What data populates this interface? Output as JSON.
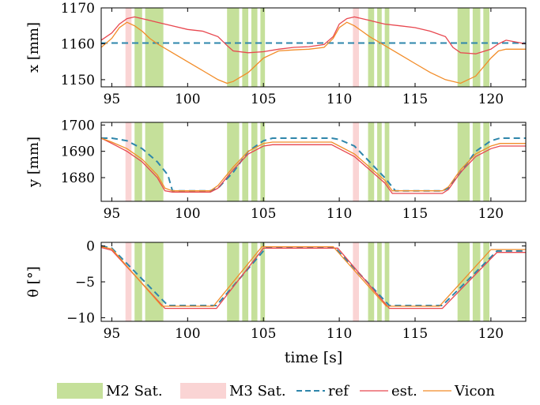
{
  "chart_data": [
    {
      "type": "line",
      "panel": "x",
      "ylabel": "x [mm]",
      "xlabel": "",
      "xlim": [
        94.3,
        122.3
      ],
      "ylim": [
        1148,
        1170
      ],
      "xticks": [
        95,
        100,
        105,
        110,
        115,
        120
      ],
      "xtick_labels": [
        "95",
        "100",
        "105",
        "110",
        "115",
        "120"
      ],
      "yticks": [
        1150,
        1160,
        1170
      ],
      "ytick_labels": [
        "1150",
        "1160",
        "1170"
      ],
      "series": [
        {
          "name": "ref",
          "color": "#2e86ab",
          "style": "dashed",
          "x": [
            94.3,
            122.3
          ],
          "y": [
            1160.2,
            1160.2
          ]
        },
        {
          "name": "est.",
          "color": "#e8474f",
          "style": "solid",
          "x": [
            94.3,
            95.0,
            95.5,
            96.0,
            96.5,
            97.0,
            97.5,
            98.0,
            99.0,
            100.0,
            101.0,
            102.0,
            102.6,
            103.0,
            104.0,
            105.0,
            106.0,
            107.0,
            108.0,
            109.0,
            109.6,
            110.0,
            110.5,
            111.0,
            111.5,
            112.0,
            112.5,
            113.0,
            114.0,
            115.0,
            116.0,
            117.0,
            117.5,
            118.0,
            119.0,
            120.0,
            120.5,
            121.0,
            122.3
          ],
          "y": [
            1161.0,
            1163.0,
            1165.5,
            1167.0,
            1167.5,
            1167.0,
            1166.5,
            1166.0,
            1165.0,
            1164.0,
            1163.5,
            1162.0,
            1159.5,
            1158.0,
            1157.5,
            1157.8,
            1158.5,
            1159.0,
            1159.2,
            1159.8,
            1162.0,
            1165.5,
            1167.0,
            1167.5,
            1167.0,
            1166.5,
            1166.0,
            1165.5,
            1165.0,
            1164.5,
            1163.5,
            1162.0,
            1159.0,
            1157.5,
            1157.2,
            1158.5,
            1160.0,
            1161.0,
            1160.0
          ]
        },
        {
          "name": "Vicon",
          "color": "#f28c28",
          "style": "solid",
          "x": [
            94.3,
            95.0,
            95.5,
            96.0,
            96.5,
            97.0,
            97.5,
            98.0,
            99.0,
            100.0,
            101.0,
            102.0,
            102.6,
            103.0,
            104.0,
            105.0,
            106.0,
            107.0,
            108.0,
            109.0,
            109.6,
            110.0,
            110.5,
            111.0,
            111.5,
            112.0,
            113.0,
            114.0,
            115.0,
            116.0,
            117.0,
            118.0,
            119.0,
            120.0,
            120.5,
            121.0,
            122.3
          ],
          "y": [
            1159.0,
            1161.5,
            1164.5,
            1166.0,
            1165.0,
            1163.5,
            1161.5,
            1160.0,
            1157.5,
            1155.0,
            1152.5,
            1150.0,
            1149.0,
            1149.5,
            1152.0,
            1156.0,
            1158.0,
            1158.3,
            1158.5,
            1159.0,
            1161.5,
            1164.5,
            1166.0,
            1165.0,
            1163.5,
            1162.0,
            1159.5,
            1157.0,
            1154.5,
            1152.0,
            1150.0,
            1149.0,
            1151.0,
            1156.0,
            1158.0,
            1158.5,
            1158.5
          ]
        }
      ],
      "m2_sat": [
        [
          96.5,
          97.0
        ],
        [
          97.2,
          98.4
        ],
        [
          102.6,
          103.4
        ],
        [
          103.6,
          104.0
        ],
        [
          104.2,
          104.6
        ],
        [
          104.8,
          105.1
        ],
        [
          111.9,
          112.3
        ],
        [
          112.5,
          112.8
        ],
        [
          113.0,
          113.3
        ],
        [
          117.8,
          118.6
        ],
        [
          118.8,
          119.3
        ],
        [
          119.5,
          119.9
        ]
      ],
      "m3_sat": [
        [
          95.9,
          96.3
        ],
        [
          110.9,
          111.3
        ]
      ]
    },
    {
      "type": "line",
      "panel": "y",
      "ylabel": "y [mm]",
      "xlabel": "",
      "xlim": [
        94.3,
        122.3
      ],
      "ylim": [
        1671,
        1701
      ],
      "xticks": [
        95,
        100,
        105,
        110,
        115,
        120
      ],
      "xtick_labels": [
        "95",
        "100",
        "105",
        "110",
        "115",
        "120"
      ],
      "yticks": [
        1680,
        1690,
        1700
      ],
      "ytick_labels": [
        "1680",
        "1690",
        "1700"
      ],
      "series": [
        {
          "name": "ref",
          "color": "#2e86ab",
          "style": "dashed",
          "x": [
            94.3,
            95.0,
            96.0,
            97.0,
            98.0,
            98.7,
            99.0,
            101.5,
            102.0,
            103.0,
            104.0,
            105.0,
            105.6,
            109.5,
            110.0,
            111.0,
            112.0,
            113.0,
            113.7,
            116.8,
            117.2,
            118.0,
            119.0,
            120.0,
            120.6,
            122.3
          ],
          "y": [
            1695,
            1695,
            1694,
            1691,
            1686,
            1681,
            1675,
            1675,
            1676,
            1682,
            1690,
            1694,
            1695,
            1695,
            1694.5,
            1692,
            1686,
            1680,
            1675,
            1675,
            1676,
            1682,
            1690,
            1694,
            1695,
            1695
          ]
        },
        {
          "name": "est.",
          "color": "#e8474f",
          "style": "solid",
          "x": [
            94.3,
            95.0,
            96.0,
            97.0,
            98.0,
            98.5,
            99.0,
            101.5,
            102.0,
            103.0,
            104.0,
            105.0,
            105.6,
            109.5,
            110.0,
            111.0,
            112.0,
            113.0,
            113.5,
            116.8,
            117.2,
            118.0,
            119.0,
            120.0,
            120.6,
            122.3
          ],
          "y": [
            1695,
            1693,
            1690,
            1686,
            1680,
            1675,
            1674.5,
            1674.5,
            1676,
            1683,
            1689,
            1692,
            1692.5,
            1692.5,
            1691,
            1688,
            1683,
            1678,
            1674,
            1674,
            1675.5,
            1682,
            1688,
            1691,
            1692,
            1692
          ]
        },
        {
          "name": "Vicon",
          "color": "#f28c28",
          "style": "solid",
          "x": [
            94.3,
            95.0,
            96.0,
            97.0,
            98.0,
            98.5,
            99.0,
            101.5,
            102.0,
            103.0,
            104.0,
            105.0,
            105.6,
            109.5,
            110.0,
            111.0,
            112.0,
            113.0,
            113.5,
            116.8,
            117.2,
            118.0,
            119.0,
            120.0,
            120.6,
            122.3
          ],
          "y": [
            1695,
            1693.5,
            1691,
            1687,
            1681,
            1676,
            1675,
            1675,
            1677,
            1684,
            1690,
            1693,
            1693.5,
            1693.5,
            1692,
            1689,
            1684,
            1679,
            1675,
            1675,
            1676.5,
            1683,
            1689,
            1692,
            1693,
            1693
          ]
        }
      ],
      "m2_sat": [
        [
          96.5,
          97.0
        ],
        [
          97.2,
          98.4
        ],
        [
          102.6,
          103.4
        ],
        [
          103.6,
          104.0
        ],
        [
          104.2,
          104.6
        ],
        [
          104.8,
          105.1
        ],
        [
          111.9,
          112.3
        ],
        [
          112.5,
          112.8
        ],
        [
          113.0,
          113.3
        ],
        [
          117.8,
          118.6
        ],
        [
          118.8,
          119.3
        ],
        [
          119.5,
          119.9
        ]
      ],
      "m3_sat": [
        [
          95.9,
          96.3
        ],
        [
          110.9,
          111.3
        ]
      ]
    },
    {
      "type": "line",
      "panel": "theta",
      "ylabel": "θ [°]",
      "xlabel": "time [s]",
      "xlim": [
        94.3,
        122.3
      ],
      "ylim": [
        -10.5,
        0.5
      ],
      "xticks": [
        95,
        100,
        105,
        110,
        115,
        120
      ],
      "xtick_labels": [
        "95",
        "100",
        "105",
        "110",
        "115",
        "120"
      ],
      "yticks": [
        0,
        -5,
        -10
      ],
      "ytick_labels": [
        "0",
        "−5",
        "−10"
      ],
      "series": [
        {
          "name": "ref",
          "color": "#2e86ab",
          "style": "dashed",
          "x": [
            94.3,
            95.0,
            98.7,
            101.9,
            105.2,
            109.7,
            113.3,
            116.8,
            120.4,
            122.3
          ],
          "y": [
            0,
            -0.3,
            -8.3,
            -8.3,
            -0.2,
            -0.2,
            -8.3,
            -8.3,
            -0.7,
            -0.7
          ]
        },
        {
          "name": "est.",
          "color": "#e8474f",
          "style": "solid",
          "x": [
            94.3,
            95.0,
            98.5,
            101.9,
            105.0,
            109.9,
            113.3,
            116.8,
            120.4,
            122.3
          ],
          "y": [
            -0.2,
            -0.6,
            -8.7,
            -8.7,
            -0.3,
            -0.3,
            -8.7,
            -8.7,
            -0.9,
            -0.9
          ]
        },
        {
          "name": "Vicon",
          "color": "#f28c28",
          "style": "solid",
          "x": [
            94.3,
            95.0,
            98.3,
            101.7,
            104.9,
            109.6,
            113.1,
            116.6,
            120.0,
            122.3
          ],
          "y": [
            -0.1,
            -0.4,
            -8.4,
            -8.4,
            -0.1,
            -0.1,
            -8.4,
            -8.4,
            -0.5,
            -0.5
          ]
        }
      ],
      "m2_sat": [
        [
          96.5,
          97.0
        ],
        [
          97.2,
          98.4
        ],
        [
          102.6,
          103.4
        ],
        [
          103.6,
          104.0
        ],
        [
          104.2,
          104.6
        ],
        [
          104.8,
          105.1
        ],
        [
          111.9,
          112.3
        ],
        [
          112.5,
          112.8
        ],
        [
          113.0,
          113.3
        ],
        [
          117.8,
          118.6
        ],
        [
          118.8,
          119.3
        ],
        [
          119.5,
          119.9
        ]
      ],
      "m3_sat": [
        [
          95.9,
          96.3
        ],
        [
          110.9,
          111.3
        ]
      ]
    }
  ],
  "legend": {
    "placement": "bottom",
    "items": [
      {
        "label": "M2 Sat.",
        "kind": "patch",
        "color": "#c5e09a"
      },
      {
        "label": "M3 Sat.",
        "kind": "patch",
        "color": "#fad4d4"
      },
      {
        "label": "ref",
        "kind": "dashed",
        "color": "#2e86ab"
      },
      {
        "label": "est.",
        "kind": "line",
        "color": "#e8474f"
      },
      {
        "label": "Vicon",
        "kind": "line",
        "color": "#f28c28"
      }
    ]
  },
  "colors": {
    "m2_sat": "#c5e09a",
    "m3_sat": "#fad4d4",
    "ref": "#2e86ab",
    "est": "#e8474f",
    "vicon": "#f28c28"
  }
}
